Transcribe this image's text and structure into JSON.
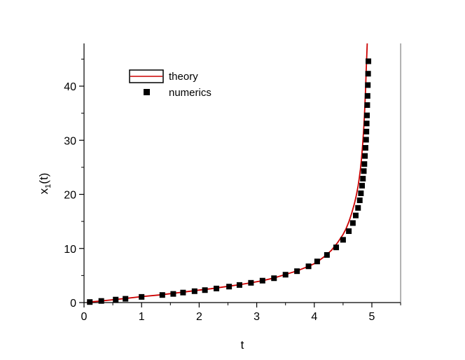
{
  "chart_data": {
    "type": "line",
    "xlabel": "t",
    "ylabel": "x",
    "ylabel_subscript": "1",
    "ylabel_suffix": "(t)",
    "xlim": [
      0,
      5.5
    ],
    "ylim": [
      0,
      48
    ],
    "xticks": [
      0,
      1,
      2,
      3,
      4,
      5
    ],
    "yticks": [
      0,
      10,
      20,
      30,
      40
    ],
    "x_minor_step": 0.5,
    "y_minor_step": 5,
    "grid": false,
    "legend_position": "top-left",
    "series": [
      {
        "name": "theory",
        "style": "line",
        "color": "#cc0000",
        "x": [
          0.05,
          0.3,
          0.5,
          0.7,
          1.0,
          1.3,
          1.5,
          1.7,
          2.0,
          2.2,
          2.5,
          2.7,
          2.9,
          3.1,
          3.3,
          3.5,
          3.7,
          3.9,
          4.0,
          4.1,
          4.2,
          4.3,
          4.4,
          4.5,
          4.55,
          4.6,
          4.65,
          4.7,
          4.73,
          4.76,
          4.78,
          4.8,
          4.82,
          4.84,
          4.86,
          4.87,
          4.88,
          4.89,
          4.9,
          4.91,
          4.92
        ],
        "y": [
          0.05,
          0.3,
          0.52,
          0.74,
          1.1,
          1.4,
          1.65,
          1.9,
          2.3,
          2.55,
          3.0,
          3.3,
          3.65,
          4.05,
          4.55,
          5.2,
          5.85,
          6.7,
          7.2,
          7.9,
          8.7,
          9.7,
          11.0,
          12.6,
          13.6,
          14.9,
          16.5,
          18.4,
          19.8,
          21.5,
          22.9,
          24.6,
          26.6,
          29.1,
          32.4,
          34.3,
          36.6,
          39.3,
          42.5,
          45.2,
          48.0
        ]
      },
      {
        "name": "numerics",
        "style": "marker",
        "color": "#000000",
        "x": [
          0.1,
          0.3,
          0.55,
          0.72,
          1.0,
          1.36,
          1.55,
          1.72,
          1.92,
          2.1,
          2.3,
          2.52,
          2.7,
          2.9,
          3.1,
          3.3,
          3.5,
          3.7,
          3.9,
          4.05,
          4.22,
          4.38,
          4.5,
          4.6,
          4.67,
          4.72,
          4.76,
          4.79,
          4.81,
          4.83,
          4.845,
          4.86,
          4.87,
          4.88,
          4.89,
          4.9,
          4.905,
          4.91,
          4.915,
          4.92,
          4.925
        ],
        "y": [
          0.1,
          0.3,
          0.55,
          0.7,
          1.05,
          1.4,
          1.6,
          1.85,
          2.1,
          2.3,
          2.6,
          2.95,
          3.25,
          3.65,
          4.05,
          4.5,
          5.15,
          5.8,
          6.7,
          7.6,
          8.8,
          10.2,
          11.6,
          13.2,
          14.7,
          16.1,
          17.5,
          18.9,
          20.2,
          21.6,
          22.9,
          24.3,
          25.6,
          27.1,
          28.6,
          30.1,
          31.6,
          33.1,
          34.6,
          36.5,
          38.2
        ]
      }
    ]
  },
  "numerics_extra_points": {
    "x": [
      4.93,
      4.935,
      4.94
    ],
    "y": [
      40.2,
      42.3,
      44.6
    ]
  }
}
